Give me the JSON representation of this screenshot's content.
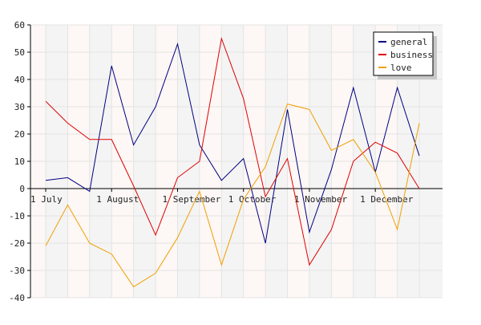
{
  "chart_data": {
    "type": "line",
    "title": "",
    "xlabel": "",
    "ylabel": "",
    "ylim": [
      -40,
      60
    ],
    "y_ticks": [
      -40,
      -30,
      -20,
      -10,
      0,
      10,
      20,
      30,
      40,
      50,
      60
    ],
    "x_index_range": [
      0,
      18
    ],
    "x_ticks": [
      {
        "index": 0,
        "label": "1 July"
      },
      {
        "index": 3,
        "label": "1 August"
      },
      {
        "index": 6,
        "label": "1 September"
      },
      {
        "index": 9,
        "label": "1 October"
      },
      {
        "index": 12,
        "label": "1 November"
      },
      {
        "index": 15,
        "label": "1 December"
      }
    ],
    "grid": true,
    "legend_position": "top-right",
    "series": [
      {
        "name": "general",
        "color": "#000080",
        "values": [
          3,
          4,
          -1,
          45,
          16,
          30,
          53,
          16,
          3,
          11,
          -20,
          29,
          -16,
          7,
          37,
          6,
          37,
          12
        ]
      },
      {
        "name": "business",
        "color": "#dd0000",
        "values": [
          32,
          24,
          18,
          18,
          1,
          -17,
          4,
          10,
          55,
          33,
          -3,
          11,
          -28,
          -15,
          10,
          17,
          13,
          0
        ]
      },
      {
        "name": "love",
        "color": "#f0a000",
        "values": [
          -21,
          -6,
          -20,
          -24,
          -36,
          -31,
          -18,
          -1,
          -28,
          -4,
          8,
          31,
          29,
          14,
          18,
          6,
          -15,
          24
        ]
      }
    ]
  }
}
